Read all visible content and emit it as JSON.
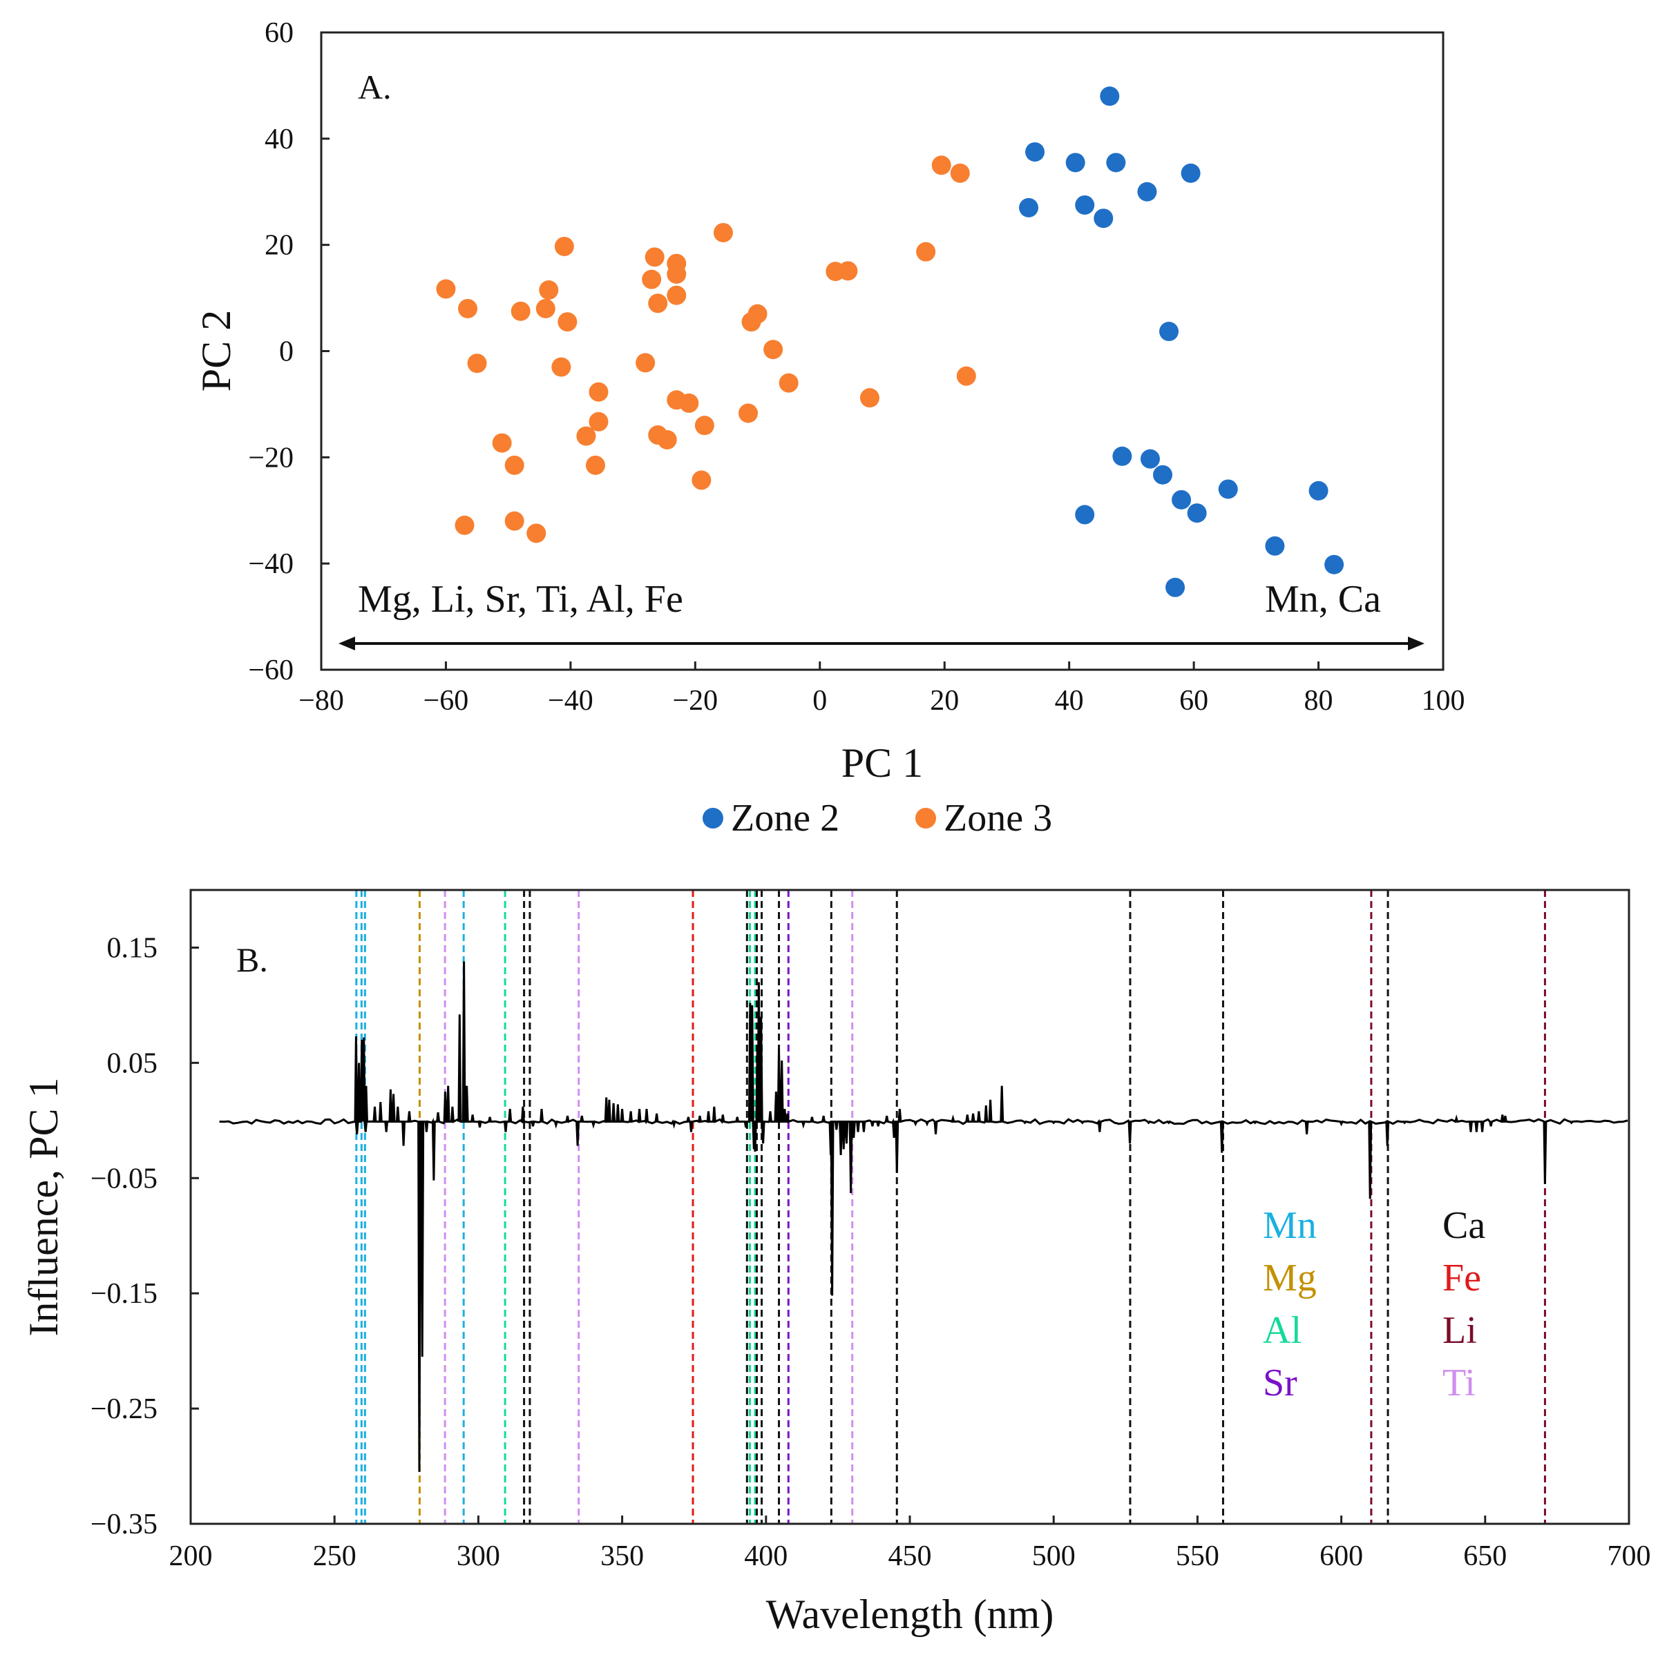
{
  "chart_data": [
    {
      "type": "scatter",
      "panel_label": "A.",
      "xlabel": "PC 1",
      "ylabel": "PC 2",
      "xlim": [
        -80,
        100
      ],
      "ylim": [
        -60,
        60
      ],
      "xticks": [
        -80,
        -60,
        -40,
        -20,
        0,
        20,
        40,
        60,
        80,
        100
      ],
      "yticks": [
        -60,
        -40,
        -20,
        0,
        20,
        40,
        60
      ],
      "grid": false,
      "legend_position": "bottom",
      "annotations": {
        "left": "Mg, Li, Sr, Ti, Al, Fe",
        "right": "Mn, Ca"
      },
      "series": [
        {
          "name": "Zone 2",
          "color": "#1f6fc6",
          "points": [
            [
              46.5,
              48
            ],
            [
              34.5,
              37.5
            ],
            [
              41,
              35.5
            ],
            [
              47.5,
              35.5
            ],
            [
              59.5,
              33.5
            ],
            [
              52.5,
              30
            ],
            [
              42.5,
              27.5
            ],
            [
              33.5,
              27
            ],
            [
              45.5,
              25
            ],
            [
              56,
              3.7
            ],
            [
              48.5,
              -19.8
            ],
            [
              53,
              -20.3
            ],
            [
              55,
              -23.3
            ],
            [
              65.5,
              -26
            ],
            [
              80,
              -26.3
            ],
            [
              58,
              -28
            ],
            [
              60.5,
              -30.5
            ],
            [
              42.5,
              -30.8
            ],
            [
              73,
              -36.7
            ],
            [
              82.5,
              -40.2
            ],
            [
              57,
              -44.5
            ]
          ]
        },
        {
          "name": "Zone 3",
          "color": "#f77f2f",
          "points": [
            [
              19.5,
              35
            ],
            [
              22.5,
              33.5
            ],
            [
              -15.5,
              22.3
            ],
            [
              -41,
              19.7
            ],
            [
              17,
              18.7
            ],
            [
              -26.5,
              17.7
            ],
            [
              -23,
              16.5
            ],
            [
              -23,
              14.5
            ],
            [
              2.5,
              15
            ],
            [
              4.5,
              15.1
            ],
            [
              -27,
              13.5
            ],
            [
              -60,
              11.7
            ],
            [
              -43.5,
              11.5
            ],
            [
              -23,
              10.5
            ],
            [
              -26,
              9
            ],
            [
              -56.5,
              8
            ],
            [
              -48,
              7.5
            ],
            [
              -44,
              8
            ],
            [
              -10,
              7
            ],
            [
              -40.5,
              5.5
            ],
            [
              -11,
              5.5
            ],
            [
              -7.5,
              0.3
            ],
            [
              -55,
              -2.3
            ],
            [
              -28,
              -2.2
            ],
            [
              -41.5,
              -3
            ],
            [
              -5,
              -6
            ],
            [
              23.5,
              -4.7
            ],
            [
              -35.5,
              -7.7
            ],
            [
              8,
              -8.8
            ],
            [
              -23,
              -9.2
            ],
            [
              -21,
              -9.8
            ],
            [
              -11.5,
              -11.7
            ],
            [
              -35.5,
              -13.3
            ],
            [
              -18.5,
              -14
            ],
            [
              -37.5,
              -16
            ],
            [
              -26,
              -15.8
            ],
            [
              -24.5,
              -16.7
            ],
            [
              -51,
              -17.3
            ],
            [
              -49,
              -21.5
            ],
            [
              -36,
              -21.5
            ],
            [
              -19,
              -24.3
            ],
            [
              -49,
              -32
            ],
            [
              -57,
              -32.8
            ],
            [
              -45.5,
              -34.3
            ]
          ]
        }
      ]
    },
    {
      "type": "line",
      "panel_label": "B.",
      "xlabel": "Wavelength (nm)",
      "ylabel": "Influence, PC 1",
      "xlim": [
        200,
        700
      ],
      "ylim": [
        -0.35,
        0.2
      ],
      "xticks": [
        200,
        250,
        300,
        350,
        400,
        450,
        500,
        550,
        600,
        650,
        700
      ],
      "yticks": [
        0.15,
        0.05,
        -0.05,
        -0.15,
        -0.25,
        -0.35
      ],
      "grid": false,
      "series_color": "#000000",
      "baseline": -0.001,
      "x_start": 210,
      "peaks": [
        [
          257.5,
          0.073
        ],
        [
          258.5,
          0.05
        ],
        [
          259.5,
          0.07
        ],
        [
          260.2,
          0.072
        ],
        [
          261,
          0.03
        ],
        [
          257.8,
          -0.012
        ],
        [
          260.8,
          -0.01
        ],
        [
          264,
          0.012
        ],
        [
          266,
          0.016
        ],
        [
          268,
          -0.01
        ],
        [
          269.5,
          0.027
        ],
        [
          270.5,
          0.023
        ],
        [
          272,
          0.012
        ],
        [
          274,
          -0.022
        ],
        [
          276,
          0.008
        ],
        [
          279.5,
          -0.305
        ],
        [
          280.5,
          -0.205
        ],
        [
          282,
          -0.01
        ],
        [
          284.5,
          -0.052
        ],
        [
          286,
          0.007
        ],
        [
          288.5,
          0.025
        ],
        [
          289.5,
          0.03
        ],
        [
          291,
          0.012
        ],
        [
          293.5,
          0.092
        ],
        [
          295,
          0.138
        ],
        [
          296,
          0.03
        ],
        [
          298,
          0.005
        ],
        [
          300.5,
          -0.006
        ],
        [
          304,
          0.003
        ],
        [
          309.5,
          -0.01
        ],
        [
          311,
          0.01
        ],
        [
          315.5,
          0.012
        ],
        [
          319,
          -0.005
        ],
        [
          322,
          0.01
        ],
        [
          327,
          -0.004
        ],
        [
          331,
          0.004
        ],
        [
          334.5,
          -0.022
        ],
        [
          336,
          0.004
        ],
        [
          340,
          -0.004
        ],
        [
          344.5,
          0.02
        ],
        [
          345.5,
          0.018
        ],
        [
          347,
          0.015
        ],
        [
          348.5,
          0.014
        ],
        [
          350,
          0.01
        ],
        [
          353,
          0.008
        ],
        [
          356,
          0.01
        ],
        [
          358.5,
          0.01
        ],
        [
          362,
          0.006
        ],
        [
          368,
          -0.004
        ],
        [
          373,
          0.003
        ],
        [
          374,
          -0.01
        ],
        [
          377,
          0.004
        ],
        [
          380,
          0.008
        ],
        [
          382,
          0.012
        ],
        [
          385,
          0.005
        ],
        [
          390,
          0.003
        ],
        [
          393,
          -0.006
        ],
        [
          394.5,
          0.102
        ],
        [
          395.2,
          0.1
        ],
        [
          395.8,
          -0.025
        ],
        [
          396.2,
          -0.027
        ],
        [
          397,
          0.065
        ],
        [
          397.5,
          0.12
        ],
        [
          398.3,
          0.09
        ],
        [
          399,
          -0.02
        ],
        [
          401.5,
          0.008
        ],
        [
          403.5,
          0.025
        ],
        [
          404.5,
          0.062
        ],
        [
          405.5,
          0.052
        ],
        [
          406.5,
          0.01
        ],
        [
          407.5,
          0.006
        ],
        [
          413,
          -0.004
        ],
        [
          416,
          0.003
        ],
        [
          420,
          0.004
        ],
        [
          422.5,
          -0.03
        ],
        [
          423,
          -0.152
        ],
        [
          424.5,
          -0.008
        ],
        [
          426,
          -0.03
        ],
        [
          427,
          -0.025
        ],
        [
          428,
          -0.02
        ],
        [
          429.5,
          -0.063
        ],
        [
          430.5,
          -0.015
        ],
        [
          432,
          -0.01
        ],
        [
          434,
          -0.01
        ],
        [
          437,
          -0.005
        ],
        [
          439,
          -0.005
        ],
        [
          442,
          0.004
        ],
        [
          444.5,
          -0.015
        ],
        [
          445.5,
          -0.045
        ],
        [
          446.5,
          0.01
        ],
        [
          452,
          -0.003
        ],
        [
          456,
          -0.003
        ],
        [
          459,
          -0.012
        ],
        [
          465,
          0.002
        ],
        [
          470,
          0.005
        ],
        [
          472,
          0.006
        ],
        [
          474,
          0.008
        ],
        [
          476.5,
          0.013
        ],
        [
          478,
          0.018
        ],
        [
          482,
          0.03
        ],
        [
          490,
          -0.002
        ],
        [
          500,
          -0.002
        ],
        [
          510,
          -0.002
        ],
        [
          516,
          -0.01
        ],
        [
          526.5,
          -0.02
        ],
        [
          533,
          -0.002
        ],
        [
          540,
          -0.002
        ],
        [
          558.5,
          -0.028
        ],
        [
          570,
          -0.002
        ],
        [
          588,
          -0.012
        ],
        [
          600,
          -0.003
        ],
        [
          610,
          -0.068
        ],
        [
          616,
          -0.022
        ],
        [
          622,
          -0.002
        ],
        [
          640,
          0.002
        ],
        [
          645,
          -0.01
        ],
        [
          647,
          -0.01
        ],
        [
          649,
          -0.01
        ],
        [
          652,
          -0.005
        ],
        [
          656,
          0.005
        ],
        [
          657,
          0.004
        ],
        [
          670.8,
          -0.055
        ],
        [
          680,
          -0.002
        ]
      ],
      "reference_lines": [
        {
          "element": "Mn",
          "color": "#1ab0e0",
          "x": [
            257.6,
            259.4,
            260.6,
            294.9
          ]
        },
        {
          "element": "Mg",
          "color": "#c49000",
          "x": [
            279.6
          ]
        },
        {
          "element": "Al",
          "color": "#14d99a",
          "x": [
            309.3,
            394.4,
            396.2
          ]
        },
        {
          "element": "Sr",
          "color": "#7a12c8",
          "x": [
            407.8
          ]
        },
        {
          "element": "Ca",
          "color": "#111111",
          "x": [
            315.9,
            317.9,
            393.4,
            396.8,
            398.5,
            404.5,
            422.7,
            445.5,
            526.6,
            558.9,
            616.2
          ]
        },
        {
          "element": "Fe",
          "color": "#e01a1a",
          "x": [
            374.6
          ]
        },
        {
          "element": "Li",
          "color": "#7a0c28",
          "x": [
            610.4,
            670.8
          ]
        },
        {
          "element": "Ti",
          "color": "#d08ef0",
          "x": [
            288.4,
            334.9,
            430.0
          ]
        }
      ],
      "element_legend": [
        {
          "label": "Mn",
          "color": "#1ab0e0"
        },
        {
          "label": "Mg",
          "color": "#c49000"
        },
        {
          "label": "Al",
          "color": "#14d99a"
        },
        {
          "label": "Sr",
          "color": "#7a12c8"
        },
        {
          "label": "Ca",
          "color": "#111111"
        },
        {
          "label": "Fe",
          "color": "#e01a1a"
        },
        {
          "label": "Li",
          "color": "#7a0c28"
        },
        {
          "label": "Ti",
          "color": "#d08ef0"
        }
      ]
    }
  ]
}
